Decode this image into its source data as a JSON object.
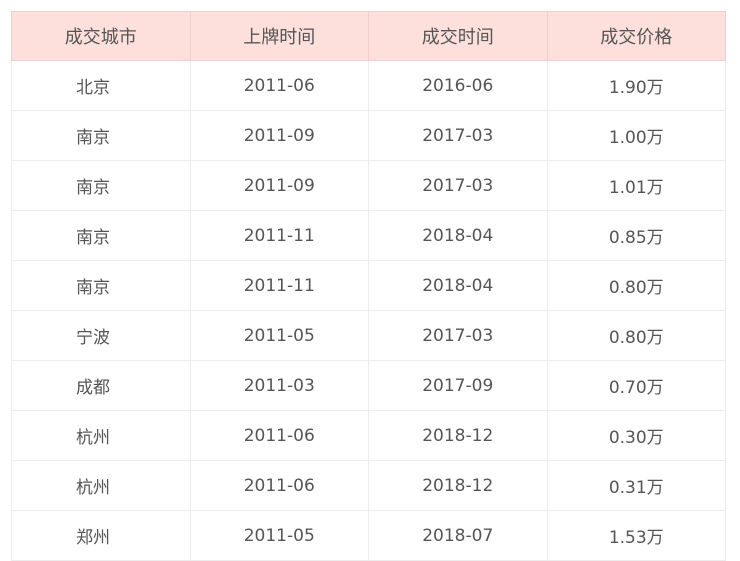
{
  "table": {
    "headers": [
      "成交城市",
      "上牌时间",
      "成交时间",
      "成交价格"
    ],
    "rows": [
      [
        "北京",
        "2011-06",
        "2016-06",
        "1.90万"
      ],
      [
        "南京",
        "2011-09",
        "2017-03",
        "1.00万"
      ],
      [
        "南京",
        "2011-09",
        "2017-03",
        "1.01万"
      ],
      [
        "南京",
        "2011-11",
        "2018-04",
        "0.85万"
      ],
      [
        "南京",
        "2011-11",
        "2018-04",
        "0.80万"
      ],
      [
        "宁波",
        "2011-05",
        "2017-03",
        "0.80万"
      ],
      [
        "成都",
        "2011-03",
        "2017-09",
        "0.70万"
      ],
      [
        "杭州",
        "2011-06",
        "2018-12",
        "0.30万"
      ],
      [
        "杭州",
        "2011-06",
        "2018-12",
        "0.31万"
      ],
      [
        "郑州",
        "2011-05",
        "2018-07",
        "1.53万"
      ]
    ]
  },
  "colors": {
    "header_bg": "#fde0dc",
    "text": "#555555"
  }
}
